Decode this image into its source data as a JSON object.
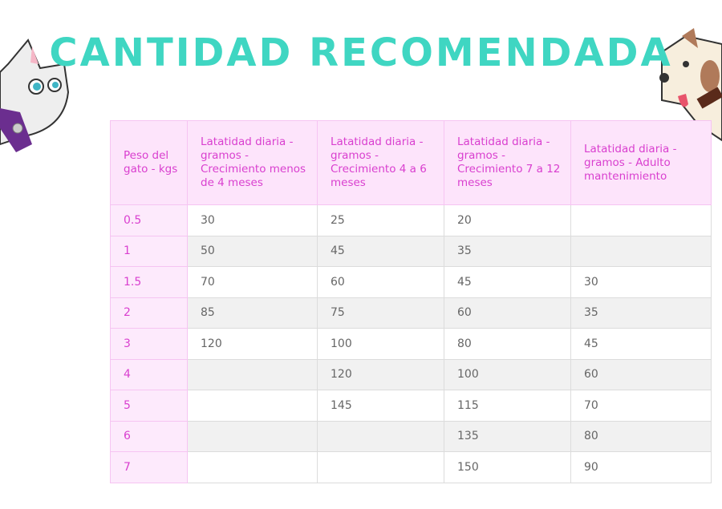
{
  "title": "CANTIDAD RECOMENDADA",
  "table": {
    "headers": [
      "Peso del gato - kgs",
      "Latatidad diaria - gramos - Crecimiento menos de 4 meses",
      "Latatidad diaria - gramos - Crecimiento 4 a 6 meses",
      "Latatidad diaria - gramos - Crecimiento 7 a 12 meses",
      "Latatidad diaria - gramos - Adulto mantenimiento"
    ],
    "rows": [
      [
        0.5,
        30,
        25,
        20,
        null
      ],
      [
        1,
        50,
        45,
        35,
        null
      ],
      [
        1.5,
        70,
        60,
        45,
        30
      ],
      [
        2,
        85,
        75,
        60,
        35
      ],
      [
        3,
        120,
        100,
        80,
        45
      ],
      [
        4,
        null,
        120,
        100,
        60
      ],
      [
        5,
        null,
        145,
        115,
        70
      ],
      [
        6,
        null,
        null,
        135,
        80
      ],
      [
        7,
        null,
        null,
        150,
        90
      ]
    ]
  }
}
